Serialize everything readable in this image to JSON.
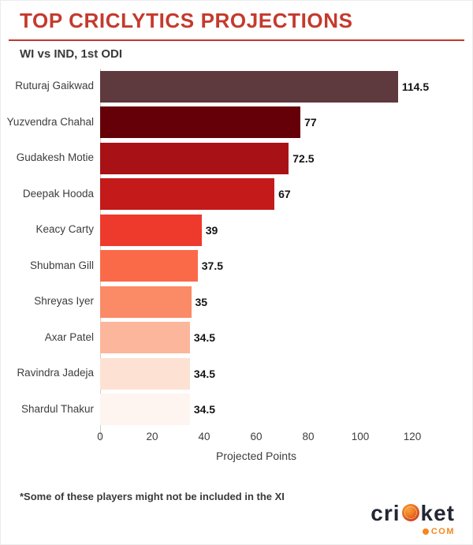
{
  "header": {
    "title": "TOP CRICLYTICS PROJECTIONS",
    "subtitle": "WI vs IND, 1st ODI"
  },
  "chart_data": {
    "type": "bar",
    "orientation": "horizontal",
    "title": "TOP CRICLYTICS PROJECTIONS",
    "subtitle": "WI vs IND, 1st ODI",
    "categories": [
      "Ruturaj Gaikwad",
      "Yuzvendra Chahal",
      "Gudakesh Motie",
      "Deepak Hooda",
      "Keacy Carty",
      "Shubman Gill",
      "Shreyas Iyer",
      "Axar Patel",
      "Ravindra Jadeja",
      "Shardul Thakur"
    ],
    "values": [
      114.5,
      77,
      72.5,
      67,
      39,
      37.5,
      35,
      34.5,
      34.5,
      34.5
    ],
    "value_labels": [
      "114.5",
      "77",
      "72.5",
      "67",
      "39",
      "37.5",
      "35",
      "34.5",
      "34.5",
      "34.5"
    ],
    "bar_colors": [
      "#5e393e",
      "#650009",
      "#a81216",
      "#c41a1a",
      "#ee3a2c",
      "#fa6a49",
      "#fb8a66",
      "#fcb69c",
      "#fde2d4",
      "#fef5f0"
    ],
    "xlabel": "Projected Points",
    "ylabel": "",
    "xlim": [
      0,
      120
    ],
    "xticks": [
      "0",
      "20",
      "40",
      "60",
      "80",
      "100",
      "120"
    ],
    "grid": false,
    "legend": "none"
  },
  "footnote": "*Some of these players might not be included in the XI",
  "branding": {
    "logo_pre": "cri",
    "logo_post": "ket",
    "logo_tld": "COM",
    "ball_icon": "cricket-ball-icon"
  },
  "colors": {
    "title_red": "#c43a2d",
    "divider_red": "#c0392b",
    "axis_line": "#cccccc",
    "text_dark": "#3a3a3a",
    "value_label": "#141414",
    "logo_navy": "#232734",
    "logo_orange": "#f6871f"
  }
}
